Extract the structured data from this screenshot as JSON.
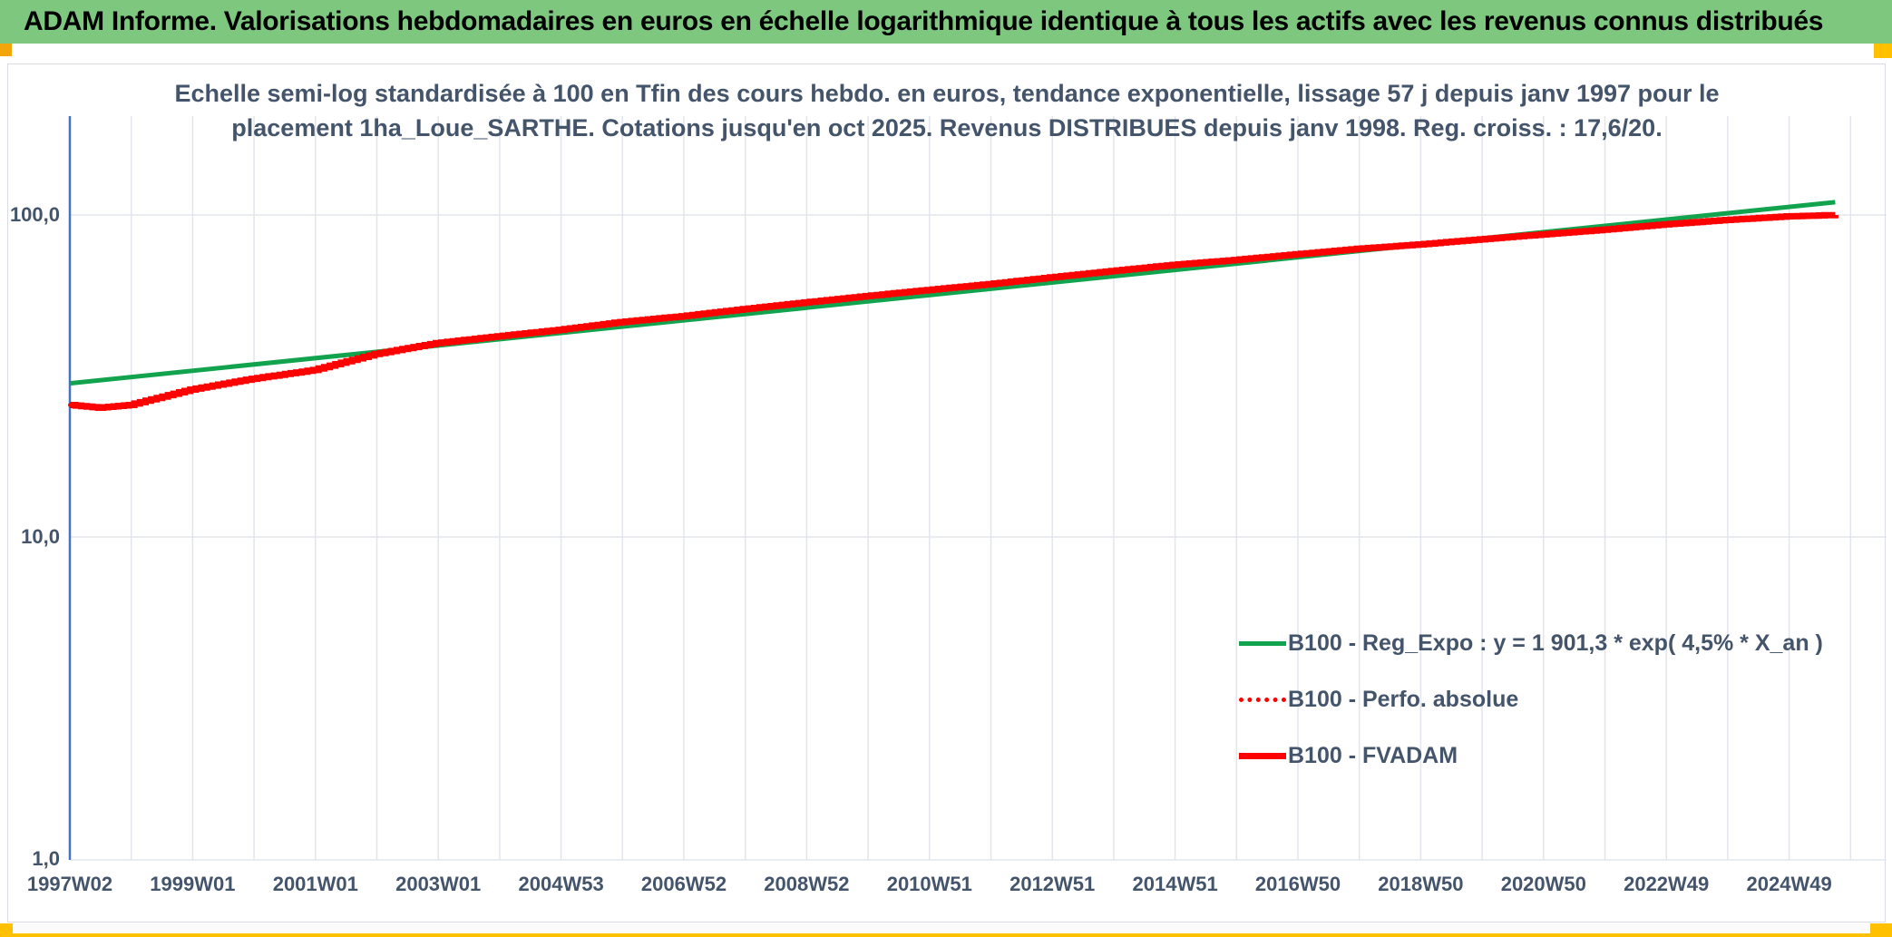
{
  "header": {
    "title": "ADAM Informe. Valorisations hebdomadaires en euros en échelle logarithmique identique à tous les actifs avec les revenus connus distribués",
    "bg_color": "#7dc87e",
    "text_color": "#000000"
  },
  "markers": {
    "top_left_color": "#f2a60a",
    "gold_color": "#ffc000"
  },
  "chart_data": {
    "type": "line",
    "y_scale": "log",
    "grid": true,
    "title_lines": [
      "Echelle semi-log standardisée à 100 en Tfin des cours hebdo. en euros, tendance exponentielle, lissage 57 j depuis janv 1997 pour le",
      "placement 1ha_Loue_SARTHE. Cotations jusqu'en oct 2025. Revenus DISTRIBUES depuis janv 1998. Reg. croiss. : 17,6/20."
    ],
    "x_tick_labels": [
      "1997W02",
      "1999W01",
      "2001W01",
      "2003W01",
      "2004W53",
      "2006W52",
      "2008W52",
      "2010W51",
      "2012W51",
      "2014W51",
      "2016W50",
      "2018W50",
      "2020W50",
      "2022W49",
      "2024W49"
    ],
    "y_ticks": [
      {
        "value": 100,
        "label": "100,0"
      },
      {
        "value": 10,
        "label": "10,0"
      },
      {
        "value": 1,
        "label": "1,0"
      }
    ],
    "x_range_years": [
      1997.04,
      2026.6
    ],
    "y_range": [
      1,
      204
    ],
    "legend_position": "inside-lower-right",
    "colors": {
      "axis": "#4472c4",
      "grid": "#e2e5eb",
      "text": "#44546a"
    },
    "series": [
      {
        "name": "B100 - Reg_Expo : y = 1 901,3 * exp( 4,5% *  X_an )",
        "color": "#12a34e",
        "style": "solid",
        "width": 5,
        "stepped": false,
        "points": [
          [
            1997.04,
            30.0
          ],
          [
            2025.79,
            109.6
          ]
        ]
      },
      {
        "name": "B100 - Perfo. absolue",
        "color": "#ff0000",
        "style": "dotted",
        "width": 4,
        "stepped": true,
        "points": [
          [
            1997.04,
            25.7
          ],
          [
            1997.5,
            25.2
          ],
          [
            1998,
            25.7
          ],
          [
            1999,
            28.7
          ],
          [
            2000,
            31.0
          ],
          [
            2001,
            33.0
          ],
          [
            2002,
            37.0
          ],
          [
            2003,
            40.0
          ],
          [
            2004,
            42.0
          ],
          [
            2005,
            44.0
          ],
          [
            2006,
            46.5
          ],
          [
            2007,
            48.5
          ],
          [
            2008,
            51.0
          ],
          [
            2009,
            53.5
          ],
          [
            2010,
            56.0
          ],
          [
            2011,
            58.5
          ],
          [
            2012,
            61.0
          ],
          [
            2013,
            64.0
          ],
          [
            2014,
            67.0
          ],
          [
            2015,
            70.0
          ],
          [
            2016,
            72.5
          ],
          [
            2017,
            75.5
          ],
          [
            2018,
            78.5
          ],
          [
            2019,
            81.0
          ],
          [
            2020,
            84.0
          ],
          [
            2021,
            87.0
          ],
          [
            2022,
            90.0
          ],
          [
            2023,
            93.5
          ],
          [
            2024,
            96.5
          ],
          [
            2025,
            99.0
          ],
          [
            2025.79,
            100.0
          ]
        ]
      },
      {
        "name": "B100 - FVADAM",
        "color": "#ff0000",
        "style": "solid",
        "width": 7,
        "stepped": true,
        "points": [
          [
            1997.04,
            25.7
          ],
          [
            1997.5,
            25.2
          ],
          [
            1998,
            25.7
          ],
          [
            1999,
            28.7
          ],
          [
            2000,
            31.0
          ],
          [
            2001,
            33.0
          ],
          [
            2002,
            37.0
          ],
          [
            2003,
            40.0
          ],
          [
            2004,
            42.0
          ],
          [
            2005,
            44.0
          ],
          [
            2006,
            46.5
          ],
          [
            2007,
            48.5
          ],
          [
            2008,
            51.0
          ],
          [
            2009,
            53.5
          ],
          [
            2010,
            56.0
          ],
          [
            2011,
            58.5
          ],
          [
            2012,
            61.0
          ],
          [
            2013,
            64.0
          ],
          [
            2014,
            67.0
          ],
          [
            2015,
            70.0
          ],
          [
            2016,
            72.5
          ],
          [
            2017,
            75.5
          ],
          [
            2018,
            78.5
          ],
          [
            2019,
            81.0
          ],
          [
            2020,
            84.0
          ],
          [
            2021,
            87.0
          ],
          [
            2022,
            90.0
          ],
          [
            2023,
            93.5
          ],
          [
            2024,
            96.5
          ],
          [
            2025,
            99.0
          ],
          [
            2025.79,
            100.0
          ]
        ]
      }
    ]
  }
}
